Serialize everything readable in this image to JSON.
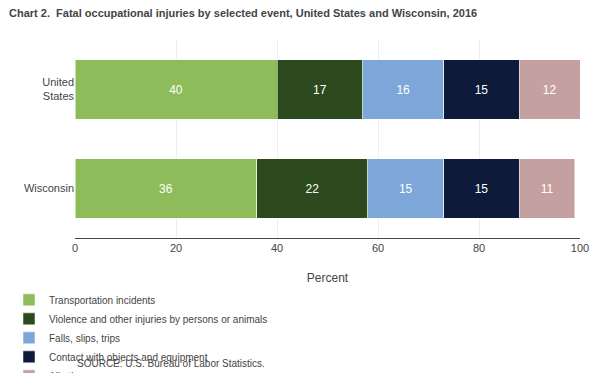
{
  "chart_data": {
    "type": "bar",
    "orientation": "horizontal",
    "stacked": true,
    "data_labels": true,
    "title": "Chart 2.  Fatal occupational injuries by selected event, United States and Wisconsin, 2016",
    "categories": [
      "United\nStates",
      "Wisconsin"
    ],
    "series": [
      {
        "name": "Transportation incidents",
        "color": "#8fbc5a",
        "values": [
          40,
          36
        ]
      },
      {
        "name": "Violence and other injuries by persons or animals",
        "color": "#2d4a1e",
        "values": [
          17,
          22
        ]
      },
      {
        "name": "Falls, slips, trips",
        "color": "#7da7d9",
        "values": [
          16,
          15
        ]
      },
      {
        "name": "Contact with objects and equipment",
        "color": "#0d1a3a",
        "values": [
          15,
          15
        ]
      },
      {
        "name": "All other",
        "color": "#c4a0a0",
        "values": [
          12,
          11
        ]
      }
    ],
    "xlabel": "Percent",
    "xlim": [
      0,
      100
    ],
    "xticks": [
      0,
      20,
      40,
      60,
      80,
      100
    ],
    "grid": true,
    "legend": "bottom",
    "annotations": [
      "SOURCE: U.S. Bureau of Labor Statistics."
    ]
  }
}
